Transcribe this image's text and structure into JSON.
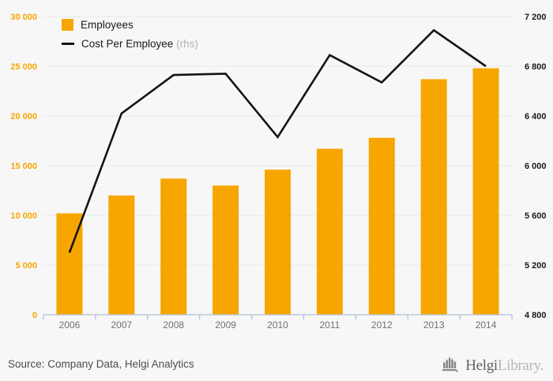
{
  "chart_data": {
    "type": "bar+line",
    "categories": [
      "2006",
      "2007",
      "2008",
      "2009",
      "2010",
      "2011",
      "2012",
      "2013",
      "2014"
    ],
    "series": [
      {
        "name": "Employees",
        "type": "bar",
        "axis": "left",
        "color": "#F7A600",
        "values": [
          10200,
          12000,
          13700,
          13000,
          14600,
          16700,
          17800,
          23700,
          24800
        ]
      },
      {
        "name": "Cost Per Employee",
        "axis_note": "(rhs)",
        "type": "line",
        "axis": "right",
        "color": "#141414",
        "values": [
          5300,
          6420,
          6730,
          6740,
          6230,
          6890,
          6670,
          7090,
          6800
        ]
      }
    ],
    "left_axis": {
      "min": 0,
      "max": 30000,
      "step": 5000,
      "color": "#F7A600",
      "tick_labels": [
        "0",
        "5 000",
        "10 000",
        "15 000",
        "20 000",
        "25 000",
        "30 000"
      ]
    },
    "right_axis": {
      "min": 4800,
      "max": 7200,
      "step": 400,
      "color": "#1a1a1a",
      "tick_labels": [
        "4 800",
        "5 200",
        "5 600",
        "6 000",
        "6 400",
        "6 800",
        "7 200"
      ]
    },
    "x_axis_label_color": "#707070",
    "grid": true,
    "gridline_color": "#e9e9e9",
    "axis_line_color": "#b4bed8",
    "legend_position": "top-left"
  },
  "footer": {
    "source_text": "Source: Company Data, Helgi Analytics",
    "brand_primary": "Helgi",
    "brand_secondary": "Library.",
    "brand_icon": "castle-icon"
  }
}
